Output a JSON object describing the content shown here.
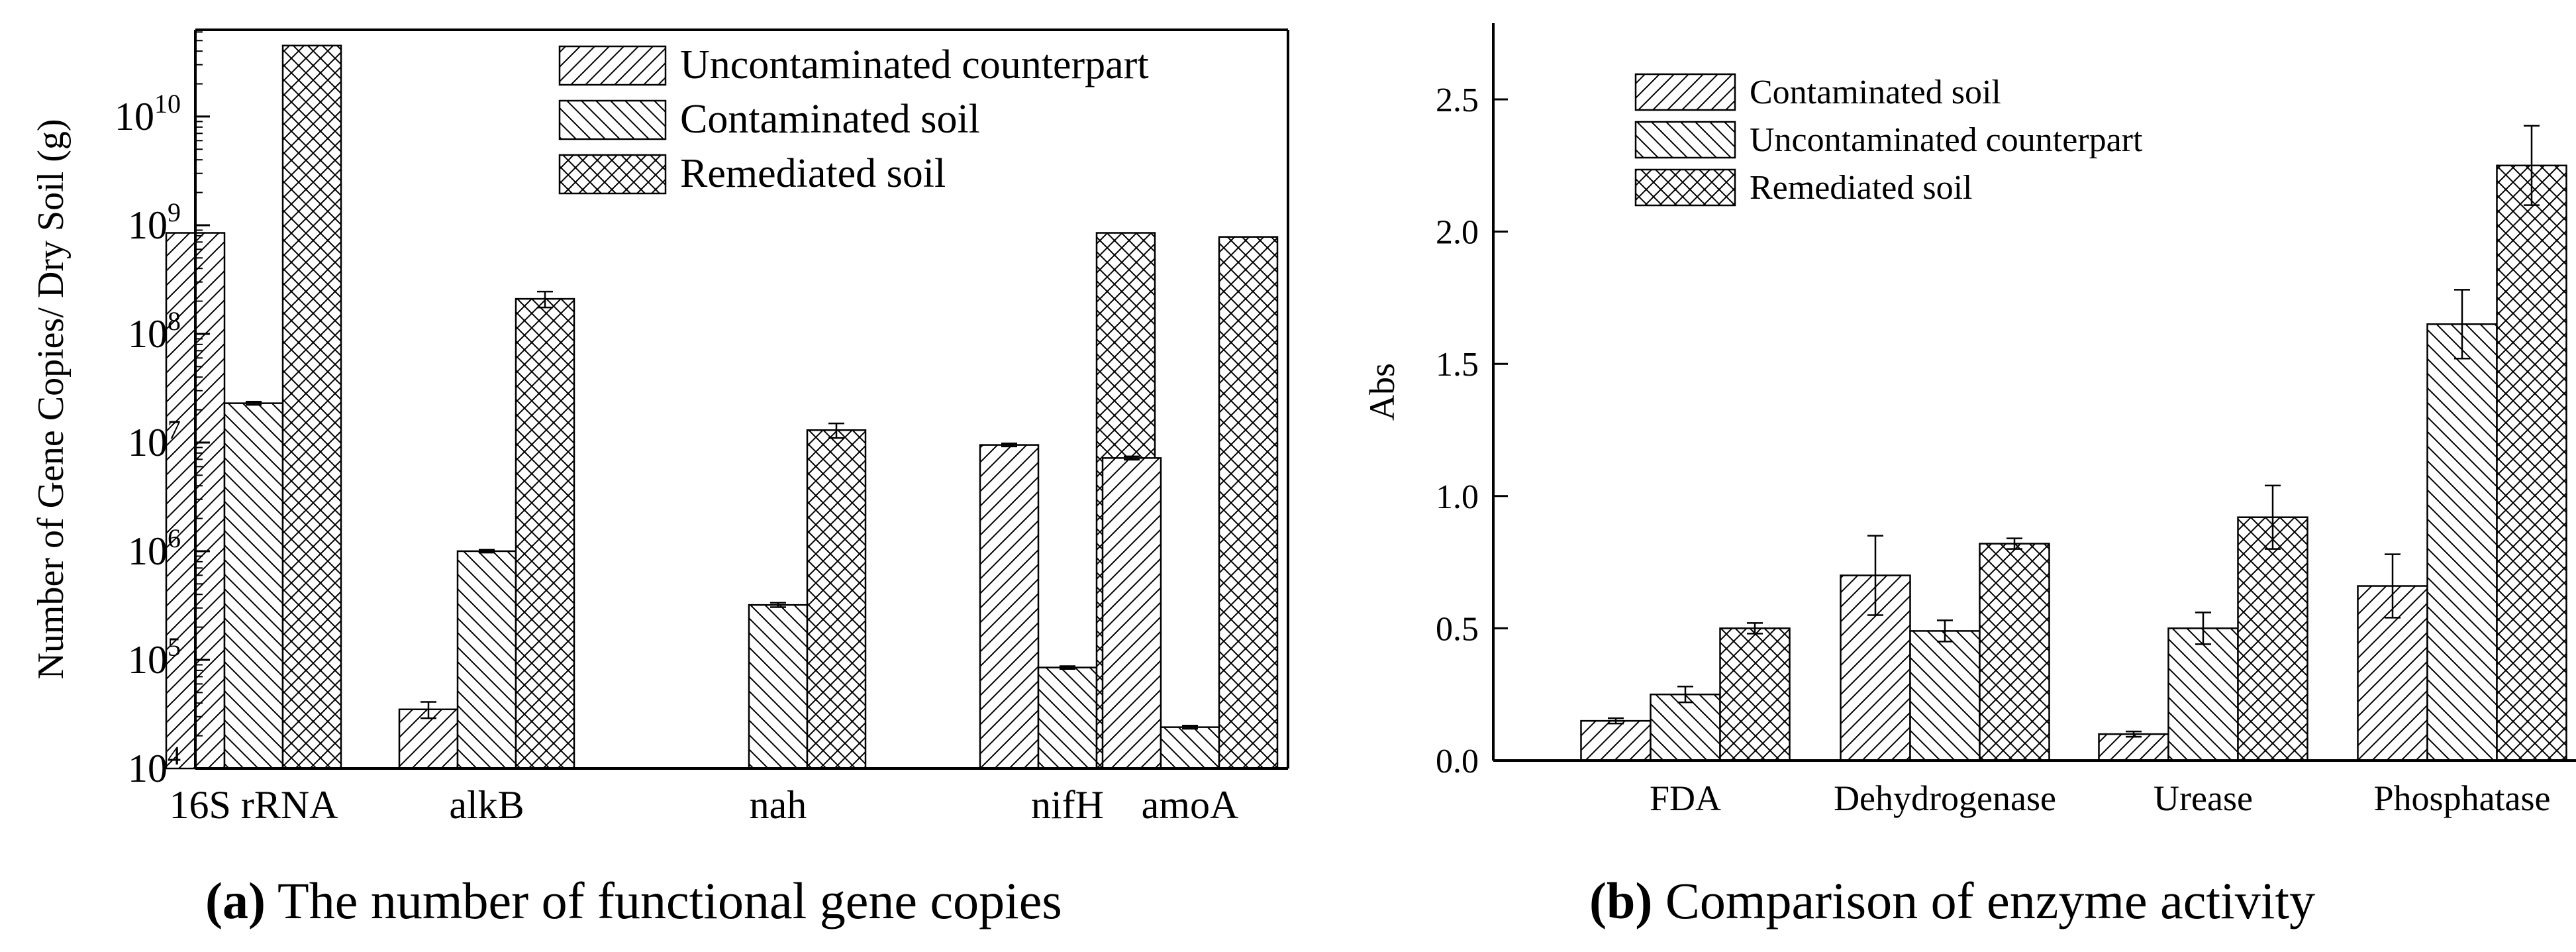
{
  "chart_data": [
    {
      "id": "a",
      "type": "bar",
      "yscale": "log",
      "ylabel": "Number of Gene Copies/ Dry Soil  (g)",
      "xlabel": "",
      "ylim": [
        10000,
        60000000000
      ],
      "yticks": [
        {
          "value": 10000,
          "base": "10",
          "exp": "4"
        },
        {
          "value": 100000,
          "base": "10",
          "exp": "5"
        },
        {
          "value": 1000000,
          "base": "10",
          "exp": "6"
        },
        {
          "value": 10000000,
          "base": "10",
          "exp": "7"
        },
        {
          "value": 100000000,
          "base": "10",
          "exp": "8"
        },
        {
          "value": 1000000000,
          "base": "10",
          "exp": "9"
        },
        {
          "value": 10000000000,
          "base": "10",
          "exp": "10"
        }
      ],
      "categories": [
        "16S rRNA",
        "alkB",
        "nah",
        "nifH",
        "amoA"
      ],
      "legend_position": "top-right",
      "series": [
        {
          "name": "Uncontaminated counterpart",
          "pattern": "diag-up",
          "values": [
            850000000,
            35000,
            null,
            9500000,
            7200000
          ],
          "errors": [
            null,
            6000,
            null,
            300000,
            250000
          ]
        },
        {
          "name": "Contaminated soil",
          "pattern": "diag-down",
          "values": [
            23000000,
            1000000,
            320000,
            85000,
            24000
          ],
          "errors": [
            800000,
            30000,
            15000,
            2500,
            800
          ]
        },
        {
          "name": "Remediated soil",
          "pattern": "cross",
          "values": [
            45000000000,
            210000000,
            13000000,
            850000000,
            780000000
          ],
          "errors": [
            null,
            35000000,
            2000000,
            null,
            null
          ]
        }
      ],
      "caption": {
        "label": "(a)",
        "text": "The number of functional gene copies"
      }
    },
    {
      "id": "b",
      "type": "bar",
      "yscale": "linear",
      "ylabel": "Abs",
      "xlabel": "",
      "ylim": [
        0,
        2.5
      ],
      "yticks": [
        "0.0",
        "0.5",
        "1.0",
        "1.5",
        "2.0",
        "2.5"
      ],
      "categories": [
        "FDA",
        "Dehydrogenase",
        "Urease",
        "Phosphatase"
      ],
      "legend_position": "top-left",
      "series": [
        {
          "name": "Contaminated soil",
          "pattern": "diag-up",
          "values": [
            0.15,
            0.7,
            0.1,
            0.66
          ],
          "errors": [
            0.01,
            0.15,
            0.01,
            0.12
          ]
        },
        {
          "name": "Uncontaminated counterpart",
          "pattern": "diag-down",
          "values": [
            0.25,
            0.49,
            0.5,
            1.65
          ],
          "errors": [
            0.03,
            0.04,
            0.06,
            0.13
          ]
        },
        {
          "name": "Remediated soil",
          "pattern": "cross",
          "values": [
            0.5,
            0.82,
            0.92,
            2.25
          ],
          "errors": [
            0.02,
            0.02,
            0.12,
            0.15
          ]
        }
      ],
      "caption": {
        "label": "(b)",
        "text": "Comparison of enzyme activity"
      }
    }
  ]
}
